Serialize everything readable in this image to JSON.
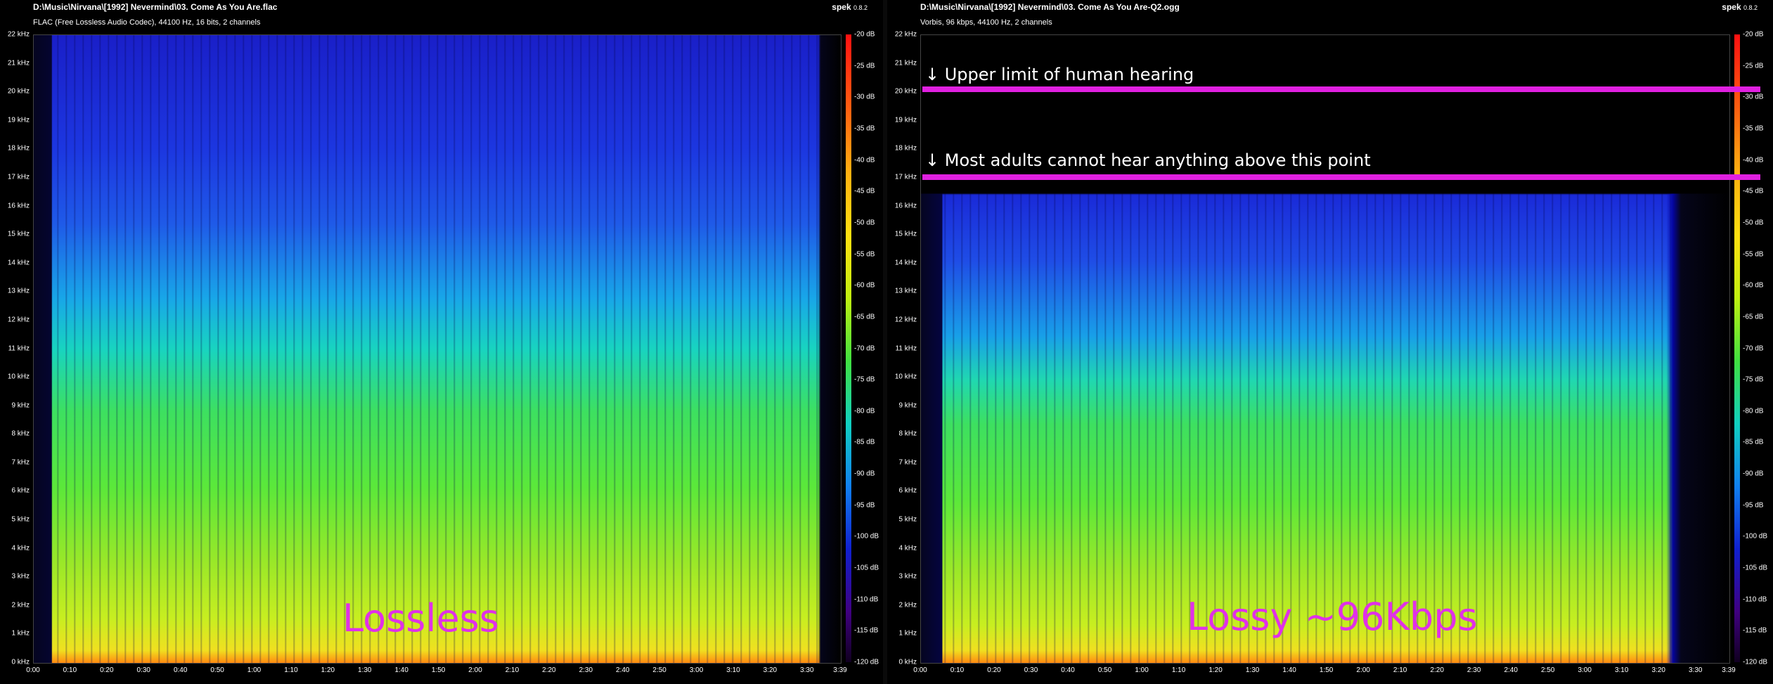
{
  "left_panel": {
    "title": "D:\\Music\\Nirvana\\[1992] Nevermind\\03. Come As You Are.flac",
    "subtitle": "FLAC (Free Lossless Audio Codec), 44100 Hz, 16 bits, 2 channels",
    "brand": "spek",
    "version": "0.8.2",
    "overlay_label": "Lossless"
  },
  "right_panel": {
    "title": "D:\\Music\\Nirvana\\[1992] Nevermind\\03. Come As You Are-Q2.ogg",
    "subtitle": "Vorbis, 96 kbps, 44100 Hz, 2 channels",
    "brand": "spek",
    "version": "0.8.2",
    "overlay_label": "Lossy ~96Kbps",
    "annotations": {
      "upper_limit": "↓ Upper limit of human hearing",
      "most_adults": "↓ Most adults cannot hear anything above this point"
    }
  },
  "colors": {
    "annotation_magenta": "#e020e0",
    "overlay_text": "#e030e8",
    "background": "#000000"
  },
  "frequency_ticks": [
    "22 kHz",
    "21 kHz",
    "20 kHz",
    "19 kHz",
    "18 kHz",
    "17 kHz",
    "16 kHz",
    "15 kHz",
    "14 kHz",
    "13 kHz",
    "12 kHz",
    "11 kHz",
    "10 kHz",
    "9 kHz",
    "8 kHz",
    "7 kHz",
    "6 kHz",
    "5 kHz",
    "4 kHz",
    "3 kHz",
    "2 kHz",
    "1 kHz",
    "0 kHz"
  ],
  "time_ticks": [
    "0:00",
    "0:10",
    "0:20",
    "0:30",
    "0:40",
    "0:50",
    "1:00",
    "1:10",
    "1:20",
    "1:30",
    "1:40",
    "1:50",
    "2:00",
    "2:10",
    "2:20",
    "2:30",
    "2:40",
    "2:50",
    "3:00",
    "3:10",
    "3:20",
    "3:30",
    "3:39"
  ],
  "db_ticks": [
    "-20 dB",
    "-25 dB",
    "-30 dB",
    "-35 dB",
    "-40 dB",
    "-45 dB",
    "-50 dB",
    "-55 dB",
    "-60 dB",
    "-65 dB",
    "-70 dB",
    "-75 dB",
    "-80 dB",
    "-85 dB",
    "-90 dB",
    "-95 dB",
    "-100 dB",
    "-105 dB",
    "-110 dB",
    "-115 dB",
    "-120 dB"
  ]
}
